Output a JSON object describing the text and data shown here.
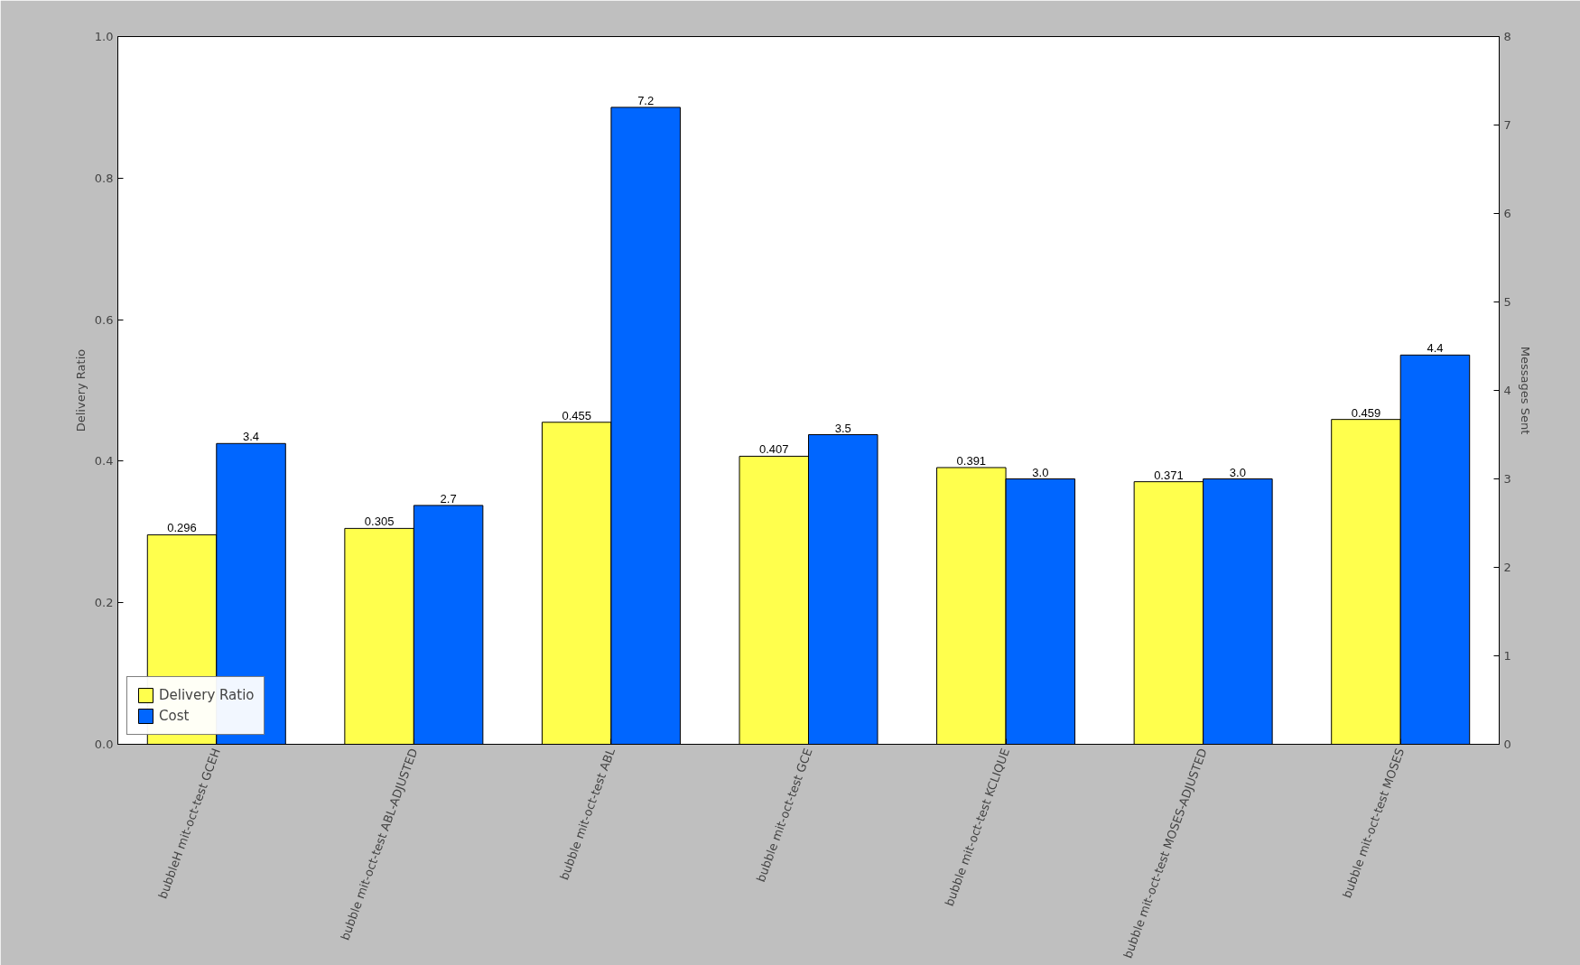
{
  "chart_data": {
    "type": "bar",
    "ylabel": "Delivery Ratio",
    "y2label": "Messages Sent",
    "categories": [
      "bubbleH mit-oct-test GCEH",
      "bubble mit-oct-test ABL-ADJUSTED",
      "bubble mit-oct-test ABL",
      "bubble mit-oct-test GCE",
      "bubble mit-oct-test KCLIQUE",
      "bubble mit-oct-test MOSES-ADJUSTED",
      "bubble mit-oct-test MOSES"
    ],
    "series": [
      {
        "name": "Delivery Ratio",
        "color": "#ffff4d",
        "values": [
          0.296,
          0.305,
          0.455,
          0.407,
          0.391,
          0.371,
          0.459
        ],
        "value_labels": [
          "0.296",
          "0.305",
          "0.455",
          "0.407",
          "0.391",
          "0.371",
          "0.459"
        ]
      },
      {
        "name": "Cost",
        "color": "#0066ff",
        "axis": "y2",
        "values": [
          3.4,
          2.7,
          7.2,
          3.5,
          3.0,
          3.0,
          4.4
        ],
        "value_labels": [
          "3.4",
          "2.7",
          "7.2",
          "3.5",
          "3.0",
          "3.0",
          "4.4"
        ]
      }
    ],
    "ylim": [
      0,
      1
    ],
    "yticks": [
      {
        "value": 0,
        "label": "0.0"
      },
      {
        "value": 0.2,
        "label": "0.2"
      },
      {
        "value": 0.4,
        "label": "0.4"
      },
      {
        "value": 0.6,
        "label": "0.6"
      },
      {
        "value": 0.8,
        "label": "0.8"
      },
      {
        "value": 1,
        "label": "1.0"
      }
    ],
    "y2lim": [
      0,
      8
    ],
    "y2ticks": [
      0,
      1,
      2,
      3,
      4,
      5,
      6,
      7,
      8
    ],
    "legend": "bottom left",
    "grid": false
  }
}
